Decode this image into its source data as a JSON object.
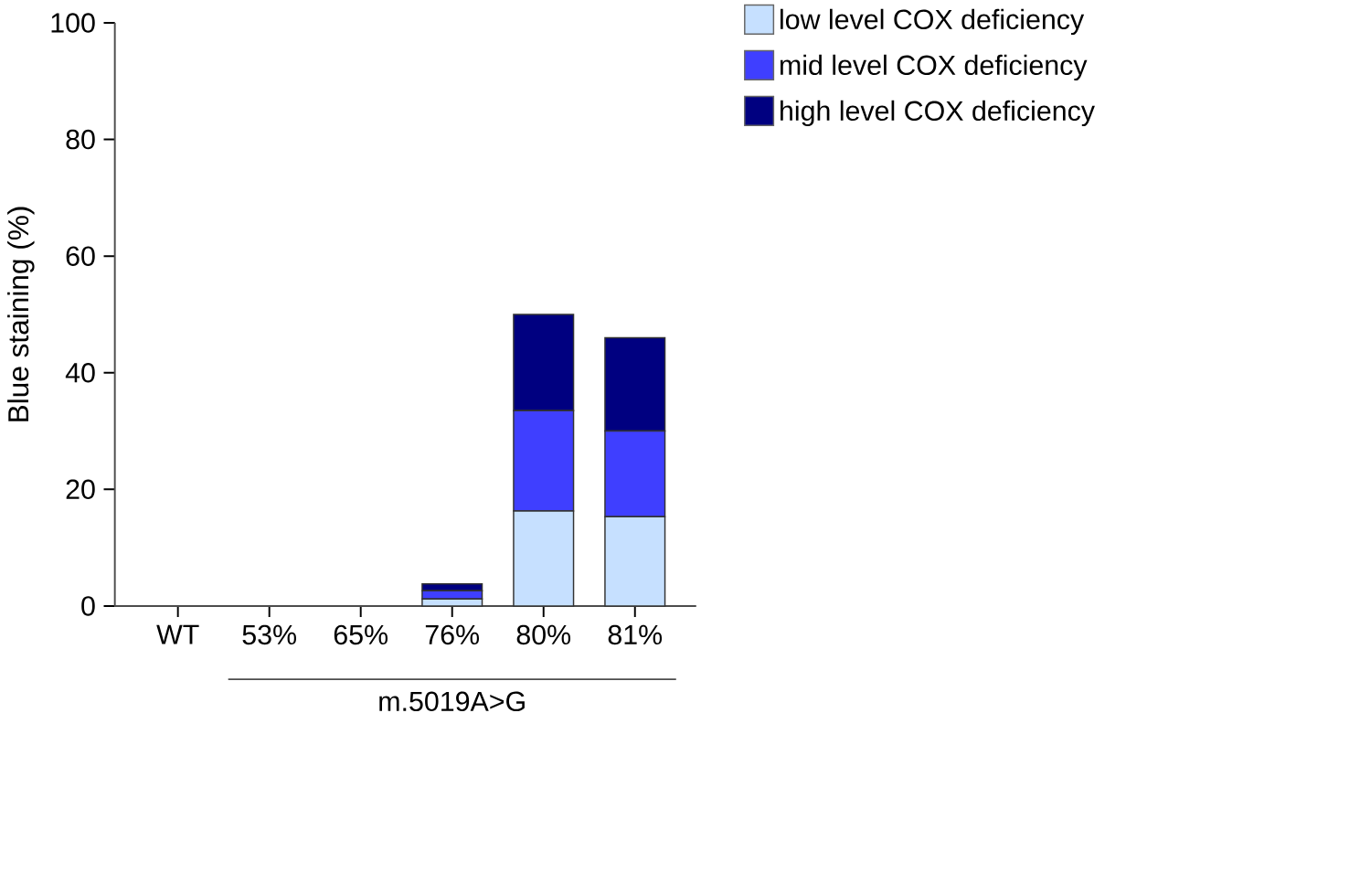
{
  "chart_data": {
    "type": "bar",
    "stacked": true,
    "ylabel": "Blue staining (%)",
    "categories": [
      "WT",
      "53%",
      "65%",
      "76%",
      "80%",
      "81%"
    ],
    "series": [
      {
        "name": "low level COX deficiency",
        "color": "#c6e0ff",
        "values": [
          0,
          0,
          0,
          1.2,
          16.3,
          15.3
        ]
      },
      {
        "name": "mid level COX deficiency",
        "color": "#3f3fff",
        "values": [
          0,
          0,
          0,
          1.4,
          17.2,
          14.7
        ]
      },
      {
        "name": "high level COX deficiency",
        "color": "#000080",
        "values": [
          0,
          0,
          0,
          1.2,
          16.5,
          16
        ]
      }
    ],
    "ylim": [
      0,
      100
    ],
    "yticks": [
      0,
      20,
      40,
      60,
      80,
      100
    ],
    "grid": false,
    "legend": "top right",
    "annotations": [
      "m.5019A>G"
    ]
  }
}
